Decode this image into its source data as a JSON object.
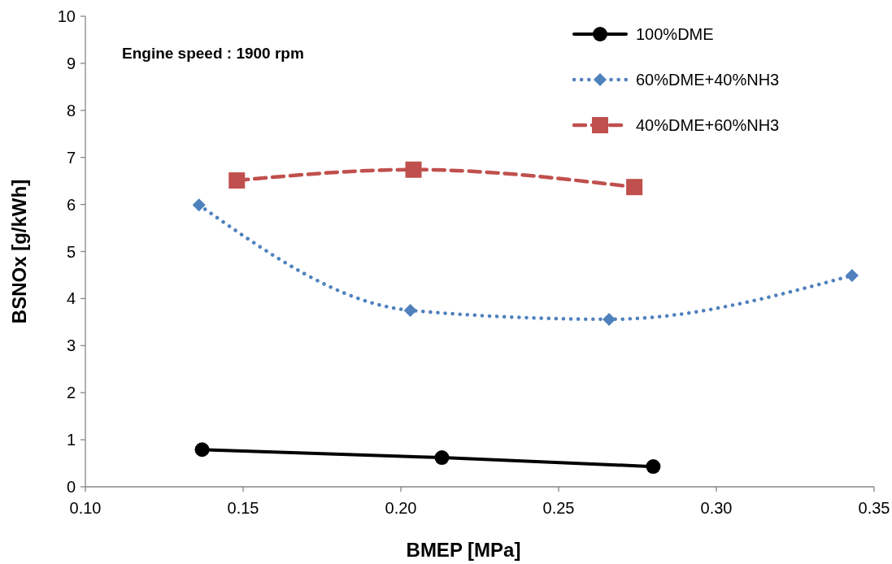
{
  "chart_data": {
    "type": "line",
    "xlabel": "BMEP [MPa]",
    "ylabel": "BSNOx [g/kWh]",
    "annotations": [
      "Engine speed : 1900 rpm"
    ],
    "xlim": [
      0.1,
      0.35
    ],
    "xticks": [
      {
        "value": 0.1,
        "label": "0.10"
      },
      0.15,
      {
        "value": 0.2,
        "label": "0.20"
      },
      0.25,
      {
        "value": 0.3,
        "label": "0.30"
      },
      0.35
    ],
    "ylim": [
      0,
      10
    ],
    "yticks": [
      0,
      1,
      2,
      3,
      4,
      5,
      6,
      7,
      8,
      9,
      10
    ],
    "grid": false,
    "legend": "top right",
    "series": [
      {
        "name": "100%DME",
        "color": "#000000",
        "marker": "circle",
        "line_style": "solid",
        "x": [
          0.137,
          0.213,
          0.28
        ],
        "values": [
          0.79,
          0.62,
          0.43
        ]
      },
      {
        "name": "60%DME+40%NH3",
        "color": "#4f81bd",
        "marker": "diamond",
        "line_style": "dotted",
        "x": [
          0.136,
          0.203,
          0.266,
          0.343
        ],
        "values": [
          5.99,
          3.75,
          3.56,
          4.49
        ]
      },
      {
        "name": "40%DME+60%NH3",
        "color": "#c0504d",
        "marker": "square",
        "line_style": "dashed",
        "x": [
          0.148,
          0.204,
          0.274
        ],
        "values": [
          6.51,
          6.74,
          6.37
        ]
      }
    ]
  }
}
